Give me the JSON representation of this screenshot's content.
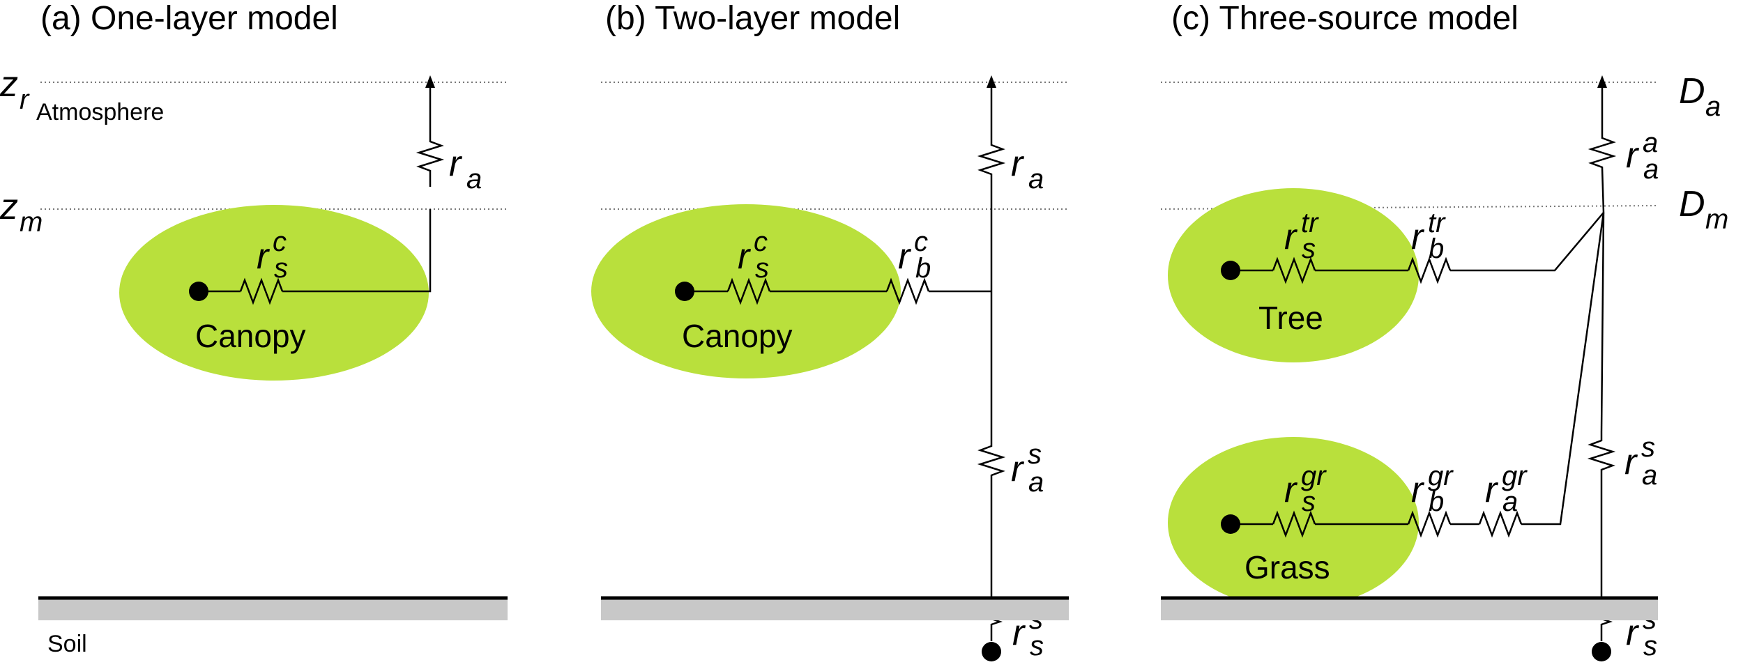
{
  "panels": {
    "a": {
      "title": "(a) One-layer model",
      "zr": {
        "base": "z",
        "sub": "r"
      },
      "zm": {
        "base": "z",
        "sub": "m"
      },
      "atmosphere": "Atmosphere",
      "soil": "Soil",
      "canopy": "Canopy",
      "ra": {
        "base": "r",
        "sub": "a"
      },
      "rsc": {
        "base": "r",
        "sub": "s",
        "sup": "c"
      }
    },
    "b": {
      "title": "(b) Two-layer model",
      "canopy": "Canopy",
      "ra": {
        "base": "r",
        "sub": "a"
      },
      "rsc": {
        "base": "r",
        "sub": "s",
        "sup": "c"
      },
      "rbc": {
        "base": "r",
        "sub": "b",
        "sup": "c"
      },
      "ras": {
        "base": "r",
        "sub": "a",
        "sup": "s"
      },
      "rss": {
        "base": "r",
        "sub": "s",
        "sup": "s"
      }
    },
    "c": {
      "title": "(c) Three-source model",
      "Da": {
        "base": "D",
        "sub": "a"
      },
      "Dm": {
        "base": "D",
        "sub": "m"
      },
      "tree": "Tree",
      "grass": "Grass",
      "raa": {
        "base": "r",
        "sub": "a",
        "sup": "a"
      },
      "rstr": {
        "base": "r",
        "sub": "s",
        "sup": "tr"
      },
      "rbtr": {
        "base": "r",
        "sub": "b",
        "sup": "tr"
      },
      "rsgr": {
        "base": "r",
        "sub": "s",
        "sup": "gr"
      },
      "rbgr": {
        "base": "r",
        "sub": "b",
        "sup": "gr"
      },
      "ragr": {
        "base": "r",
        "sub": "a",
        "sup": "gr"
      },
      "ras": {
        "base": "r",
        "sub": "a",
        "sup": "s"
      },
      "rss": {
        "base": "r",
        "sub": "s",
        "sup": "s"
      }
    }
  },
  "colors": {
    "vegetation": "#b9e03c",
    "soil": "#c8c8c8",
    "line": "#000000"
  }
}
